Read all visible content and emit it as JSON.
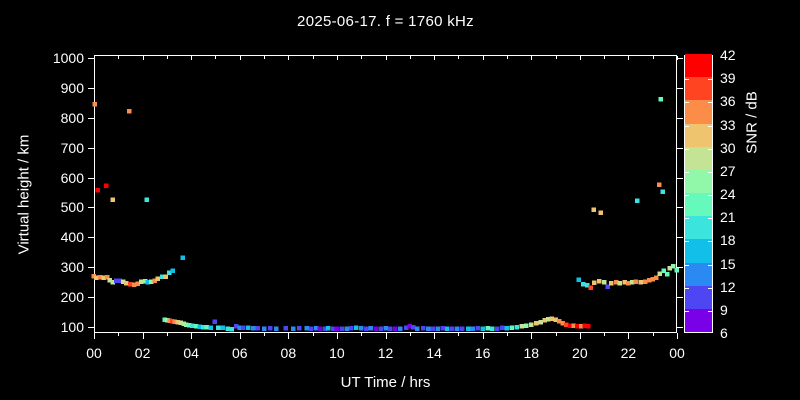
{
  "title": "2025-06-17. f = 1760 kHz",
  "axes": {
    "x_label": "UT Time / hrs",
    "y_label": "Virtual height / km",
    "x_tick_labels": [
      "00",
      "02",
      "04",
      "06",
      "08",
      "10",
      "12",
      "14",
      "16",
      "18",
      "20",
      "22",
      "00"
    ],
    "y_tick_labels": [
      "100",
      "200",
      "300",
      "400",
      "500",
      "600",
      "700",
      "800",
      "900",
      "1000"
    ]
  },
  "colorbar": {
    "label": "SNR / dB",
    "tick_labels": [
      "42",
      "39",
      "36",
      "33",
      "30",
      "27",
      "24",
      "21",
      "18",
      "15",
      "12",
      "9",
      "6"
    ],
    "min": 6,
    "max": 42
  },
  "chart_data": {
    "type": "scatter",
    "title": "2025-06-17. f = 1760 kHz",
    "xlabel": "UT Time / hrs",
    "ylabel": "Virtual height / km",
    "xlim": [
      0,
      24
    ],
    "ylim": [
      80,
      1010
    ],
    "x_major_step_hours": 2,
    "x_minor_step_hours": 1,
    "y_major_step_km": 100,
    "grid": false,
    "legend_position": "colorbar-right",
    "color_value": "SNR / dB",
    "palette_bands": [
      {
        "min": 6,
        "color": "#7A00E8"
      },
      {
        "min": 9,
        "color": "#4D46F2"
      },
      {
        "min": 12,
        "color": "#2B8AF2"
      },
      {
        "min": 15,
        "color": "#12BFE8"
      },
      {
        "min": 18,
        "color": "#3BE4DC"
      },
      {
        "min": 21,
        "color": "#66F9BC"
      },
      {
        "min": 24,
        "color": "#90F8A8"
      },
      {
        "min": 27,
        "color": "#C5E395"
      },
      {
        "min": 30,
        "color": "#EFC46F"
      },
      {
        "min": 33,
        "color": "#FC8D49"
      },
      {
        "min": 36,
        "color": "#FF4422"
      },
      {
        "min": 39,
        "color": "#FF0000"
      }
    ],
    "points_format": [
      "hour_ut",
      "virtual_height_km",
      "snr_db"
    ],
    "points": [
      [
        0.0,
        270,
        34
      ],
      [
        0.1,
        264,
        31
      ],
      [
        0.25,
        266,
        34
      ],
      [
        0.4,
        265,
        31
      ],
      [
        0.55,
        267,
        34
      ],
      [
        0.65,
        256,
        28
      ],
      [
        0.78,
        249,
        28
      ],
      [
        0.92,
        254,
        10
      ],
      [
        1.07,
        255,
        10
      ],
      [
        1.2,
        251,
        28
      ],
      [
        1.32,
        246,
        31
      ],
      [
        1.5,
        243,
        37
      ],
      [
        1.65,
        241,
        34
      ],
      [
        1.8,
        245,
        34
      ],
      [
        1.95,
        251,
        28
      ],
      [
        2.1,
        253,
        25
      ],
      [
        2.22,
        250,
        16
      ],
      [
        2.35,
        252,
        25
      ],
      [
        2.5,
        255,
        34
      ],
      [
        2.62,
        261,
        31
      ],
      [
        2.8,
        269,
        19
      ],
      [
        2.95,
        268,
        31
      ],
      [
        3.1,
        281,
        19
      ],
      [
        3.25,
        289,
        16
      ],
      [
        3.66,
        332,
        16
      ],
      [
        0.04,
        846,
        34
      ],
      [
        1.45,
        821,
        34
      ],
      [
        0.16,
        558,
        40
      ],
      [
        0.5,
        572,
        40
      ],
      [
        0.78,
        525,
        31
      ],
      [
        2.18,
        525,
        19
      ],
      [
        2.92,
        124,
        22
      ],
      [
        3.02,
        122,
        25
      ],
      [
        3.12,
        121,
        34
      ],
      [
        3.22,
        119,
        37
      ],
      [
        3.32,
        118,
        34
      ],
      [
        3.45,
        116,
        31
      ],
      [
        3.58,
        114,
        28
      ],
      [
        3.7,
        111,
        28
      ],
      [
        3.8,
        108,
        25
      ],
      [
        3.92,
        106,
        22
      ],
      [
        4.05,
        104,
        19
      ],
      [
        4.2,
        102,
        22
      ],
      [
        4.35,
        101,
        16
      ],
      [
        4.5,
        100,
        19
      ],
      [
        4.65,
        99,
        22
      ],
      [
        4.8,
        98,
        16
      ],
      [
        4.98,
        117,
        10
      ],
      [
        5.12,
        98,
        19
      ],
      [
        5.3,
        97,
        16
      ],
      [
        5.5,
        95,
        19
      ],
      [
        5.68,
        92,
        19
      ],
      [
        5.85,
        103,
        10
      ],
      [
        6.0,
        98,
        12
      ],
      [
        6.15,
        97,
        10
      ],
      [
        6.35,
        97,
        16
      ],
      [
        6.55,
        96,
        12
      ],
      [
        6.75,
        96,
        10
      ],
      [
        7.0,
        95,
        12
      ],
      [
        7.25,
        96,
        10
      ],
      [
        7.5,
        95,
        12
      ],
      [
        7.9,
        96,
        10
      ],
      [
        8.2,
        95,
        12
      ],
      [
        8.45,
        96,
        10
      ],
      [
        8.75,
        96,
        12
      ],
      [
        8.95,
        95,
        9
      ],
      [
        9.15,
        96,
        12
      ],
      [
        9.3,
        94,
        7
      ],
      [
        9.5,
        95,
        9
      ],
      [
        9.65,
        96,
        15
      ],
      [
        9.85,
        94,
        9
      ],
      [
        10.0,
        95,
        7
      ],
      [
        10.2,
        94,
        9
      ],
      [
        10.4,
        95,
        12
      ],
      [
        10.6,
        96,
        9
      ],
      [
        10.8,
        97,
        15
      ],
      [
        11.0,
        96,
        12
      ],
      [
        11.2,
        95,
        9
      ],
      [
        11.4,
        96,
        12
      ],
      [
        11.6,
        94,
        7
      ],
      [
        11.8,
        95,
        9
      ],
      [
        12.0,
        96,
        12
      ],
      [
        12.2,
        94,
        9
      ],
      [
        12.4,
        95,
        7
      ],
      [
        12.6,
        94,
        12
      ],
      [
        12.85,
        97,
        9
      ],
      [
        13.0,
        103,
        7
      ],
      [
        13.15,
        99,
        9
      ],
      [
        13.3,
        95,
        12
      ],
      [
        13.55,
        96,
        9
      ],
      [
        13.75,
        95,
        12
      ],
      [
        13.95,
        94,
        9
      ],
      [
        14.15,
        95,
        12
      ],
      [
        14.35,
        96,
        9
      ],
      [
        14.55,
        94,
        15
      ],
      [
        14.75,
        95,
        9
      ],
      [
        14.95,
        94,
        12
      ],
      [
        15.15,
        95,
        9
      ],
      [
        15.4,
        94,
        15
      ],
      [
        15.6,
        95,
        12
      ],
      [
        15.8,
        96,
        9
      ],
      [
        16.0,
        95,
        15
      ],
      [
        16.2,
        96,
        22
      ],
      [
        16.4,
        94,
        19
      ],
      [
        16.6,
        95,
        10
      ],
      [
        16.8,
        97,
        10
      ],
      [
        17.0,
        96,
        16
      ],
      [
        17.2,
        98,
        22
      ],
      [
        17.4,
        100,
        19
      ],
      [
        17.6,
        102,
        28
      ],
      [
        17.8,
        104,
        25
      ],
      [
        18.0,
        108,
        28
      ],
      [
        18.2,
        112,
        31
      ],
      [
        18.4,
        116,
        28
      ],
      [
        18.55,
        122,
        31
      ],
      [
        18.7,
        126,
        28
      ],
      [
        18.85,
        128,
        31
      ],
      [
        19.0,
        124,
        31
      ],
      [
        19.15,
        119,
        34
      ],
      [
        19.3,
        113,
        34
      ],
      [
        19.45,
        108,
        37
      ],
      [
        19.6,
        104,
        40
      ],
      [
        19.75,
        105,
        34
      ],
      [
        19.9,
        103,
        40
      ],
      [
        20.05,
        102,
        34
      ],
      [
        20.2,
        104,
        40
      ],
      [
        20.35,
        102,
        40
      ],
      [
        19.95,
        258,
        16
      ],
      [
        20.15,
        243,
        19
      ],
      [
        20.3,
        239,
        19
      ],
      [
        20.45,
        231,
        37
      ],
      [
        20.6,
        248,
        31
      ],
      [
        20.8,
        253,
        31
      ],
      [
        21.0,
        250,
        28
      ],
      [
        21.15,
        234,
        10
      ],
      [
        21.3,
        247,
        31
      ],
      [
        21.5,
        250,
        34
      ],
      [
        21.65,
        247,
        28
      ],
      [
        21.85,
        250,
        31
      ],
      [
        22.0,
        247,
        34
      ],
      [
        22.15,
        250,
        28
      ],
      [
        22.3,
        252,
        34
      ],
      [
        22.5,
        250,
        31
      ],
      [
        22.7,
        252,
        34
      ],
      [
        22.85,
        256,
        34
      ],
      [
        23.0,
        259,
        34
      ],
      [
        23.15,
        265,
        34
      ],
      [
        23.3,
        278,
        28
      ],
      [
        23.45,
        288,
        22
      ],
      [
        23.6,
        277,
        22
      ],
      [
        23.7,
        296,
        28
      ],
      [
        23.85,
        303,
        25
      ],
      [
        23.98,
        290,
        22
      ],
      [
        20.58,
        492,
        31
      ],
      [
        20.87,
        482,
        31
      ],
      [
        22.36,
        522,
        19
      ],
      [
        23.26,
        576,
        34
      ],
      [
        23.42,
        553,
        19
      ],
      [
        23.34,
        862,
        22
      ]
    ]
  }
}
